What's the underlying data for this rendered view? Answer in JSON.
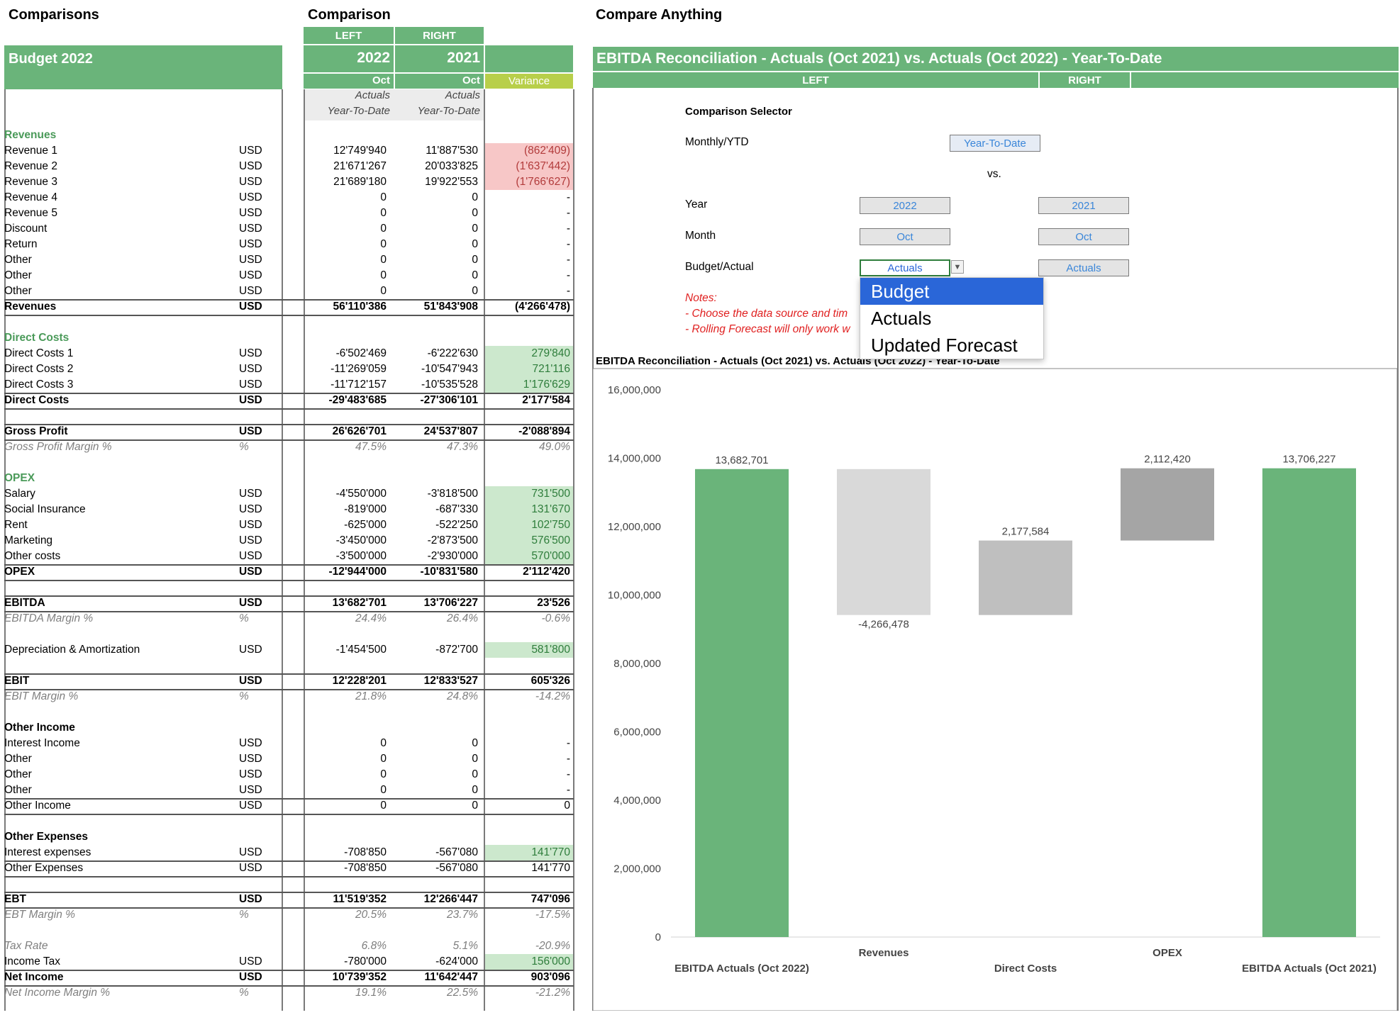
{
  "titles": {
    "left": "Comparisons",
    "middle": "Comparison",
    "right": "Compare Anything"
  },
  "left_header": {
    "title": "Budget 2022"
  },
  "comparison_header": {
    "left_label": "LEFT",
    "right_label": "RIGHT",
    "left_year": "2022",
    "right_year": "2021",
    "left_month": "Oct",
    "right_month": "Oct",
    "variance_label": "Variance",
    "left_type": "Actuals",
    "right_type": "Actuals",
    "left_period": "Year-To-Date",
    "right_period": "Year-To-Date"
  },
  "rows": [
    {
      "label": "Revenues",
      "style": "sec",
      "top": 180
    },
    {
      "label": "Revenue 1",
      "unit": "USD",
      "a": "12'749'940",
      "b": "11'887'530",
      "v": "(862'409)",
      "vs": "red",
      "top": 202
    },
    {
      "label": "Revenue 2",
      "unit": "USD",
      "a": "21'671'267",
      "b": "20'033'825",
      "v": "(1'637'442)",
      "vs": "red",
      "top": 224
    },
    {
      "label": "Revenue 3",
      "unit": "USD",
      "a": "21'689'180",
      "b": "19'922'553",
      "v": "(1'766'627)",
      "vs": "red",
      "top": 246
    },
    {
      "label": "Revenue 4",
      "unit": "USD",
      "a": "0",
      "b": "0",
      "v": "-",
      "top": 268
    },
    {
      "label": "Revenue 5",
      "unit": "USD",
      "a": "0",
      "b": "0",
      "v": "-",
      "top": 290
    },
    {
      "label": "Discount",
      "unit": "USD",
      "a": "0",
      "b": "0",
      "v": "-",
      "top": 312
    },
    {
      "label": "Return",
      "unit": "USD",
      "a": "0",
      "b": "0",
      "v": "-",
      "top": 334
    },
    {
      "label": "Other",
      "unit": "USD",
      "a": "0",
      "b": "0",
      "v": "-",
      "top": 356
    },
    {
      "label": "Other",
      "unit": "USD",
      "a": "0",
      "b": "0",
      "v": "-",
      "top": 378
    },
    {
      "label": "Other",
      "unit": "USD",
      "a": "0",
      "b": "0",
      "v": "-",
      "top": 400
    },
    {
      "label": "Revenues",
      "unit": "USD",
      "a": "56'110'386",
      "b": "51'843'908",
      "v": "(4'266'478)",
      "style": "bold",
      "top": 422,
      "line": true
    },
    {
      "label": "Direct Costs",
      "style": "sec",
      "top": 466
    },
    {
      "label": "Direct Costs 1",
      "unit": "USD",
      "a": "-6'502'469",
      "b": "-6'222'630",
      "v": "279'840",
      "vs": "green",
      "top": 488
    },
    {
      "label": "Direct Costs 2",
      "unit": "USD",
      "a": "-11'269'059",
      "b": "-10'547'943",
      "v": "721'116",
      "vs": "green",
      "top": 510
    },
    {
      "label": "Direct Costs 3",
      "unit": "USD",
      "a": "-11'712'157",
      "b": "-10'535'528",
      "v": "1'176'629",
      "vs": "green",
      "top": 532
    },
    {
      "label": "Direct Costs",
      "unit": "USD",
      "a": "-29'483'685",
      "b": "-27'306'101",
      "v": "2'177'584",
      "style": "bold",
      "top": 554,
      "line": true
    },
    {
      "label": "Gross Profit",
      "unit": "USD",
      "a": "26'626'701",
      "b": "24'537'807",
      "v": "-2'088'894",
      "style": "bold",
      "top": 598,
      "line": true
    },
    {
      "label": "Gross Profit Margin %",
      "unit": "%",
      "a": "47.5%",
      "b": "47.3%",
      "v": "49.0%",
      "style": "ital",
      "top": 620
    },
    {
      "label": "OPEX",
      "style": "sec",
      "top": 664
    },
    {
      "label": "Salary",
      "unit": "USD",
      "a": "-4'550'000",
      "b": "-3'818'500",
      "v": "731'500",
      "vs": "green",
      "top": 686
    },
    {
      "label": "Social Insurance",
      "unit": "USD",
      "a": "-819'000",
      "b": "-687'330",
      "v": "131'670",
      "vs": "green",
      "top": 708
    },
    {
      "label": "Rent",
      "unit": "USD",
      "a": "-625'000",
      "b": "-522'250",
      "v": "102'750",
      "vs": "green",
      "top": 730
    },
    {
      "label": "Marketing",
      "unit": "USD",
      "a": "-3'450'000",
      "b": "-2'873'500",
      "v": "576'500",
      "vs": "green",
      "top": 752
    },
    {
      "label": "Other costs",
      "unit": "USD",
      "a": "-3'500'000",
      "b": "-2'930'000",
      "v": "570'000",
      "vs": "green",
      "top": 774
    },
    {
      "label": "OPEX",
      "unit": "USD",
      "a": "-12'944'000",
      "b": "-10'831'580",
      "v": "2'112'420",
      "style": "bold",
      "top": 796,
      "line": true
    },
    {
      "label": "EBITDA",
      "unit": "USD",
      "a": "13'682'701",
      "b": "13'706'227",
      "v": "23'526",
      "style": "bold",
      "top": 840,
      "line": true
    },
    {
      "label": "EBITDA Margin %",
      "unit": "%",
      "a": "24.4%",
      "b": "26.4%",
      "v": "-0.6%",
      "style": "ital",
      "top": 862
    },
    {
      "label": "Depreciation & Amortization",
      "unit": "USD",
      "a": "-1'454'500",
      "b": "-872'700",
      "v": "581'800",
      "vs": "green",
      "top": 906
    },
    {
      "label": "EBIT",
      "unit": "USD",
      "a": "12'228'201",
      "b": "12'833'527",
      "v": "605'326",
      "style": "bold",
      "top": 950,
      "line": true
    },
    {
      "label": "EBIT Margin %",
      "unit": "%",
      "a": "21.8%",
      "b": "24.8%",
      "v": "-14.2%",
      "style": "ital",
      "top": 972
    },
    {
      "label": "Other Income",
      "style": "bold",
      "top": 1016
    },
    {
      "label": "Interest Income",
      "unit": "USD",
      "a": "0",
      "b": "0",
      "v": "-",
      "top": 1038
    },
    {
      "label": "Other",
      "unit": "USD",
      "a": "0",
      "b": "0",
      "v": "-",
      "top": 1060
    },
    {
      "label": "Other",
      "unit": "USD",
      "a": "0",
      "b": "0",
      "v": "-",
      "top": 1082
    },
    {
      "label": "Other",
      "unit": "USD",
      "a": "0",
      "b": "0",
      "v": "-",
      "top": 1104
    },
    {
      "label": "Other Income",
      "unit": "USD",
      "a": "0",
      "b": "0",
      "v": "0",
      "top": 1126,
      "line": true
    },
    {
      "label": "Other Expenses",
      "style": "bold",
      "top": 1170
    },
    {
      "label": "Interest expenses",
      "unit": "USD",
      "a": "-708'850",
      "b": "-567'080",
      "v": "141'770",
      "vs": "green",
      "top": 1192
    },
    {
      "label": "Other Expenses",
      "unit": "USD",
      "a": "-708'850",
      "b": "-567'080",
      "v": "141'770",
      "top": 1214,
      "line": true
    },
    {
      "label": "EBT",
      "unit": "USD",
      "a": "11'519'352",
      "b": "12'266'447",
      "v": "747'096",
      "style": "bold",
      "top": 1258,
      "line": true
    },
    {
      "label": "EBT Margin %",
      "unit": "%",
      "a": "20.5%",
      "b": "23.7%",
      "v": "-17.5%",
      "style": "ital",
      "top": 1280
    },
    {
      "label": "Tax Rate",
      "a": "6.8%",
      "b": "5.1%",
      "v": "-20.9%",
      "style": "ital",
      "top": 1324
    },
    {
      "label": "Income Tax",
      "unit": "USD",
      "a": "-780'000",
      "b": "-624'000",
      "v": "156'000",
      "vs": "green",
      "top": 1346
    },
    {
      "label": "Net Income",
      "unit": "USD",
      "a": "10'739'352",
      "b": "11'642'447",
      "v": "903'096",
      "style": "bold",
      "top": 1368,
      "line": true
    },
    {
      "label": "Net Income Margin %",
      "unit": "%",
      "a": "19.1%",
      "b": "22.5%",
      "v": "-21.2%",
      "style": "ital",
      "top": 1390
    }
  ],
  "panel": {
    "title": "EBITDA Reconciliation - Actuals (Oct 2021) vs. Actuals (Oct 2022) - Year-To-Date",
    "left_label": "LEFT",
    "right_label": "RIGHT",
    "selector_title": "Comparison Selector",
    "monthly_label": "Monthly/YTD",
    "monthly_value": "Year-To-Date",
    "vs_label": "vs.",
    "year_label": "Year",
    "year_left": "2022",
    "year_right": "2021",
    "month_label": "Month",
    "month_left": "Oct",
    "month_right": "Oct",
    "ba_label": "Budget/Actual",
    "ba_left": "Actuals",
    "ba_right": "Actuals",
    "notes_title": "Notes:",
    "note1": "- Choose the data source and tim",
    "note2": "- Rolling Forecast will only work w",
    "dropdown_options": [
      "Budget",
      "Actuals",
      "Updated Forecast"
    ]
  },
  "chart_data": {
    "type": "bar",
    "title": "EBITDA Reconciliation - Actuals (Oct 2021) vs. Actuals (Oct 2022) - Year-To-Date",
    "categories": [
      "EBITDA Actuals (Oct 2022)",
      "Revenues",
      "Direct Costs",
      "OPEX",
      "EBITDA Actuals (Oct 2021)"
    ],
    "bars": [
      {
        "category": "EBITDA Actuals (Oct 2022)",
        "base": 0,
        "top": 13682701,
        "label": "13,682,701",
        "color": "#6ab47a"
      },
      {
        "category": "Revenues",
        "base": 9416223,
        "top": 13682701,
        "label": "-4,266,478",
        "color": "#d9d9d9"
      },
      {
        "category": "Direct Costs",
        "base": 9416223,
        "top": 11593807,
        "label": "2,177,584",
        "color": "#bfbfbf"
      },
      {
        "category": "OPEX",
        "base": 11593807,
        "top": 13706227,
        "label": "2,112,420",
        "color": "#a5a5a5"
      },
      {
        "category": "EBITDA Actuals (Oct 2021)",
        "base": 0,
        "top": 13706227,
        "label": "13,706,227",
        "color": "#6ab47a"
      }
    ],
    "ylim": [
      0,
      16000000
    ],
    "yticks": [
      "0",
      "2,000,000",
      "4,000,000",
      "6,000,000",
      "8,000,000",
      "10,000,000",
      "12,000,000",
      "14,000,000",
      "16,000,000"
    ]
  }
}
